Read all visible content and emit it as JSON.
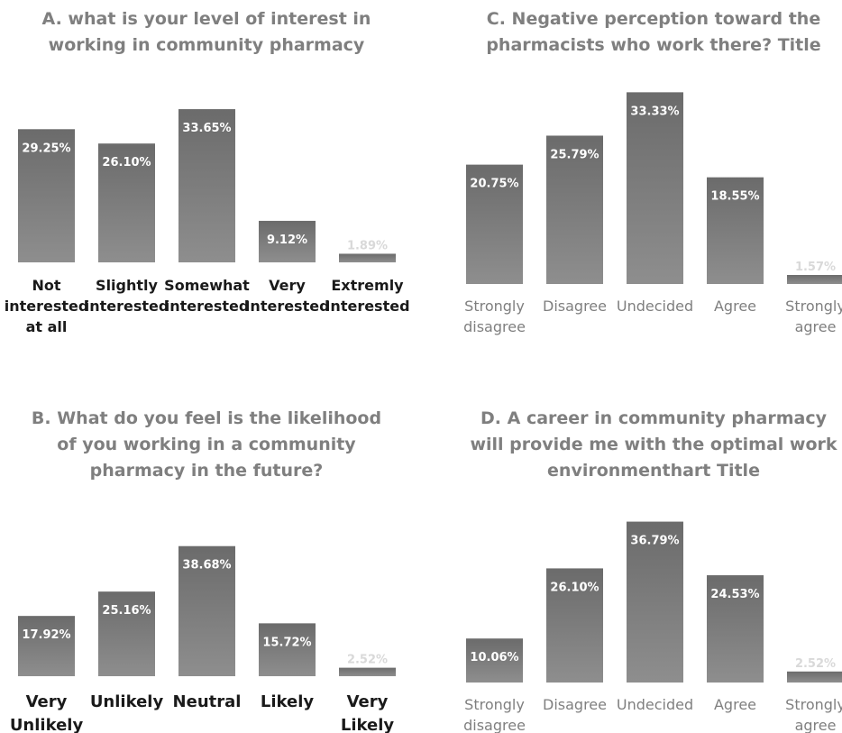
{
  "chart_data": [
    {
      "type": "bar",
      "title_lines": [
        "A. what is your level of interest in",
        "working in community pharmacy"
      ],
      "categories": [
        [
          "Not",
          "interested",
          "at all"
        ],
        [
          "Slightly",
          "interested"
        ],
        [
          "Somewhat",
          "interested"
        ],
        [
          "Very",
          "Interested"
        ],
        [
          "Extremly",
          "Interested"
        ]
      ],
      "values": [
        29.25,
        26.1,
        33.65,
        9.12,
        1.89
      ],
      "data_labels": [
        "29.25%",
        "26.10%",
        "33.65%",
        "9.12%",
        "1.89%"
      ],
      "ylim": [
        0,
        40
      ],
      "grid": false,
      "legend": "none",
      "colors": {
        "bar_top": "#6b6b6b",
        "bar_bottom": "#8e8e8e",
        "title": "#7f7f7f",
        "labels": "#1a1a1a",
        "value_label": "#ffffff",
        "small_value_label": "#d9d9d9"
      }
    },
    {
      "type": "bar",
      "title_lines": [
        "C. Negative perception toward the",
        "pharmacists who work there? Title"
      ],
      "categories": [
        [
          "Strongly",
          "disagree"
        ],
        [
          "Disagree"
        ],
        [
          "Undecided"
        ],
        [
          "Agree"
        ],
        [
          "Strongly",
          "agree"
        ]
      ],
      "values": [
        20.75,
        25.79,
        33.33,
        18.55,
        1.57
      ],
      "data_labels": [
        "20.75%",
        "25.79%",
        "33.33%",
        "18.55%",
        "1.57%"
      ],
      "ylim": [
        0,
        40
      ],
      "grid": false,
      "legend": "none",
      "colors": {
        "bar_top": "#6b6b6b",
        "bar_bottom": "#8e8e8e",
        "title": "#7f7f7f",
        "labels": "#7f7f7f",
        "value_label": "#ffffff",
        "small_value_label": "#d9d9d9"
      }
    },
    {
      "type": "bar",
      "title_lines": [
        "B. What do you feel is the likelihood",
        "of you working in  a community",
        "pharmacy in the future?"
      ],
      "categories": [
        [
          "Very",
          "Unlikely"
        ],
        [
          "Unlikely"
        ],
        [
          "Neutral"
        ],
        [
          "Likely"
        ],
        [
          "Very",
          "Likely"
        ]
      ],
      "values": [
        17.92,
        25.16,
        38.68,
        15.72,
        2.52
      ],
      "data_labels": [
        "17.92%",
        "25.16%",
        "38.68%",
        "15.72%",
        "2.52%"
      ],
      "ylim": [
        0,
        40
      ],
      "grid": false,
      "legend": "none",
      "colors": {
        "bar_top": "#6b6b6b",
        "bar_bottom": "#8e8e8e",
        "title": "#7f7f7f",
        "labels": "#1a1a1a",
        "value_label": "#ffffff",
        "small_value_label": "#d9d9d9"
      }
    },
    {
      "type": "bar",
      "title_lines": [
        "D. A career in community pharmacy",
        "will provide me with the optimal work",
        "environmenthart Title"
      ],
      "categories": [
        [
          "Strongly",
          "disagree"
        ],
        [
          "Disagree"
        ],
        [
          "Undecided"
        ],
        [
          "Agree"
        ],
        [
          "Strongly",
          "agree"
        ]
      ],
      "values": [
        10.06,
        26.1,
        36.79,
        24.53,
        2.52
      ],
      "data_labels": [
        "10.06%",
        "26.10%",
        "36.79%",
        "24.53%",
        "2.52%"
      ],
      "ylim": [
        0,
        40
      ],
      "grid": false,
      "legend": "none",
      "colors": {
        "bar_top": "#6b6b6b",
        "bar_bottom": "#8e8e8e",
        "title": "#7f7f7f",
        "labels": "#7f7f7f",
        "value_label": "#ffffff",
        "small_value_label": "#d9d9d9"
      }
    }
  ]
}
